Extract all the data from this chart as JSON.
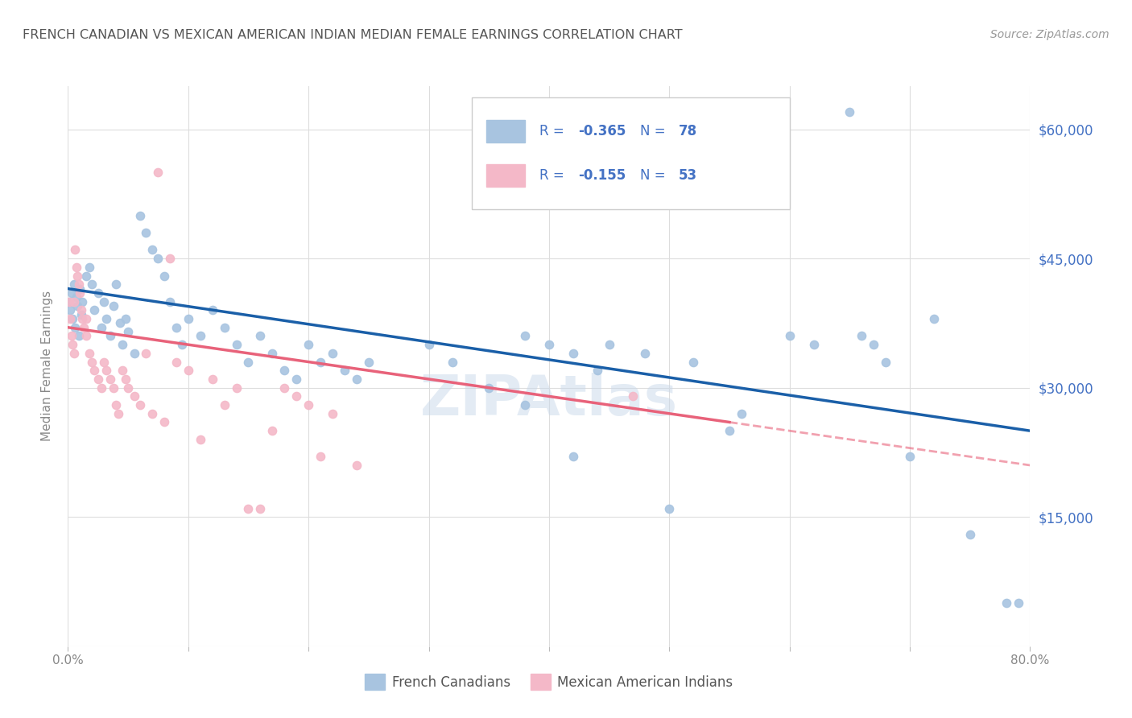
{
  "title": "FRENCH CANADIAN VS MEXICAN AMERICAN INDIAN MEDIAN FEMALE EARNINGS CORRELATION CHART",
  "source": "Source: ZipAtlas.com",
  "ylabel": "Median Female Earnings",
  "xlim": [
    0,
    0.8
  ],
  "ylim": [
    0,
    65000
  ],
  "yticks": [
    0,
    15000,
    30000,
    45000,
    60000
  ],
  "ytick_labels": [
    "",
    "$15,000",
    "$30,000",
    "$45,000",
    "$60,000"
  ],
  "xticks": [
    0.0,
    0.1,
    0.2,
    0.3,
    0.4,
    0.5,
    0.6,
    0.7,
    0.8
  ],
  "xtick_labels": [
    "0.0%",
    "",
    "",
    "",
    "",
    "",
    "",
    "",
    "80.0%"
  ],
  "blue_R": -0.365,
  "blue_N": 78,
  "pink_R": -0.155,
  "pink_N": 53,
  "blue_color": "#a8c4e0",
  "pink_color": "#f4b8c8",
  "blue_line_color": "#1a5fa8",
  "pink_line_color": "#e8627a",
  "blue_scatter": [
    [
      0.001,
      40000
    ],
    [
      0.002,
      39000
    ],
    [
      0.003,
      41000
    ],
    [
      0.004,
      38000
    ],
    [
      0.005,
      42000
    ],
    [
      0.006,
      37000
    ],
    [
      0.007,
      40500
    ],
    [
      0.008,
      39500
    ],
    [
      0.009,
      36000
    ],
    [
      0.01,
      41500
    ],
    [
      0.011,
      38500
    ],
    [
      0.012,
      40000
    ],
    [
      0.015,
      43000
    ],
    [
      0.018,
      44000
    ],
    [
      0.02,
      42000
    ],
    [
      0.022,
      39000
    ],
    [
      0.025,
      41000
    ],
    [
      0.028,
      37000
    ],
    [
      0.03,
      40000
    ],
    [
      0.032,
      38000
    ],
    [
      0.035,
      36000
    ],
    [
      0.038,
      39500
    ],
    [
      0.04,
      42000
    ],
    [
      0.043,
      37500
    ],
    [
      0.045,
      35000
    ],
    [
      0.048,
      38000
    ],
    [
      0.05,
      36500
    ],
    [
      0.055,
      34000
    ],
    [
      0.06,
      50000
    ],
    [
      0.065,
      48000
    ],
    [
      0.07,
      46000
    ],
    [
      0.075,
      45000
    ],
    [
      0.08,
      43000
    ],
    [
      0.085,
      40000
    ],
    [
      0.09,
      37000
    ],
    [
      0.095,
      35000
    ],
    [
      0.1,
      38000
    ],
    [
      0.11,
      36000
    ],
    [
      0.12,
      39000
    ],
    [
      0.13,
      37000
    ],
    [
      0.14,
      35000
    ],
    [
      0.15,
      33000
    ],
    [
      0.16,
      36000
    ],
    [
      0.17,
      34000
    ],
    [
      0.18,
      32000
    ],
    [
      0.19,
      31000
    ],
    [
      0.2,
      35000
    ],
    [
      0.21,
      33000
    ],
    [
      0.22,
      34000
    ],
    [
      0.23,
      32000
    ],
    [
      0.24,
      31000
    ],
    [
      0.25,
      33000
    ],
    [
      0.3,
      35000
    ],
    [
      0.32,
      33000
    ],
    [
      0.35,
      30000
    ],
    [
      0.38,
      36000
    ],
    [
      0.4,
      35000
    ],
    [
      0.42,
      34000
    ],
    [
      0.44,
      32000
    ],
    [
      0.45,
      35000
    ],
    [
      0.48,
      34000
    ],
    [
      0.5,
      16000
    ],
    [
      0.52,
      33000
    ],
    [
      0.55,
      25000
    ],
    [
      0.56,
      27000
    ],
    [
      0.6,
      36000
    ],
    [
      0.62,
      35000
    ],
    [
      0.65,
      62000
    ],
    [
      0.66,
      36000
    ],
    [
      0.67,
      35000
    ],
    [
      0.68,
      33000
    ],
    [
      0.7,
      22000
    ],
    [
      0.72,
      38000
    ],
    [
      0.75,
      13000
    ],
    [
      0.78,
      5000
    ],
    [
      0.79,
      5000
    ],
    [
      0.38,
      28000
    ],
    [
      0.42,
      22000
    ]
  ],
  "pink_scatter": [
    [
      0.001,
      40000
    ],
    [
      0.002,
      38000
    ],
    [
      0.003,
      36000
    ],
    [
      0.004,
      35000
    ],
    [
      0.005,
      34000
    ],
    [
      0.006,
      46000
    ],
    [
      0.007,
      44000
    ],
    [
      0.008,
      43000
    ],
    [
      0.009,
      42000
    ],
    [
      0.01,
      41000
    ],
    [
      0.011,
      39000
    ],
    [
      0.012,
      38000
    ],
    [
      0.013,
      37000
    ],
    [
      0.015,
      36000
    ],
    [
      0.018,
      34000
    ],
    [
      0.02,
      33000
    ],
    [
      0.022,
      32000
    ],
    [
      0.025,
      31000
    ],
    [
      0.028,
      30000
    ],
    [
      0.03,
      33000
    ],
    [
      0.032,
      32000
    ],
    [
      0.035,
      31000
    ],
    [
      0.038,
      30000
    ],
    [
      0.04,
      28000
    ],
    [
      0.042,
      27000
    ],
    [
      0.045,
      32000
    ],
    [
      0.048,
      31000
    ],
    [
      0.05,
      30000
    ],
    [
      0.055,
      29000
    ],
    [
      0.06,
      28000
    ],
    [
      0.065,
      34000
    ],
    [
      0.07,
      27000
    ],
    [
      0.075,
      55000
    ],
    [
      0.08,
      26000
    ],
    [
      0.085,
      45000
    ],
    [
      0.09,
      33000
    ],
    [
      0.1,
      32000
    ],
    [
      0.11,
      24000
    ],
    [
      0.12,
      31000
    ],
    [
      0.13,
      28000
    ],
    [
      0.14,
      30000
    ],
    [
      0.15,
      16000
    ],
    [
      0.16,
      16000
    ],
    [
      0.17,
      25000
    ],
    [
      0.18,
      30000
    ],
    [
      0.19,
      29000
    ],
    [
      0.2,
      28000
    ],
    [
      0.21,
      22000
    ],
    [
      0.22,
      27000
    ],
    [
      0.24,
      21000
    ],
    [
      0.47,
      29000
    ],
    [
      0.005,
      40000
    ],
    [
      0.015,
      38000
    ]
  ],
  "blue_trendline": [
    0.0,
    0.8,
    41500,
    25000
  ],
  "pink_trendline": [
    0.0,
    0.55,
    37000,
    26000
  ],
  "watermark": "ZIPAtlas",
  "background_color": "#ffffff",
  "grid_color": "#dddddd",
  "title_color": "#555555",
  "axis_label_color": "#888888",
  "legend_text_color": "#4472c4",
  "legend_label_color": "#333333",
  "tick_color_right": "#4472c4",
  "tick_color_bottom": "#888888"
}
